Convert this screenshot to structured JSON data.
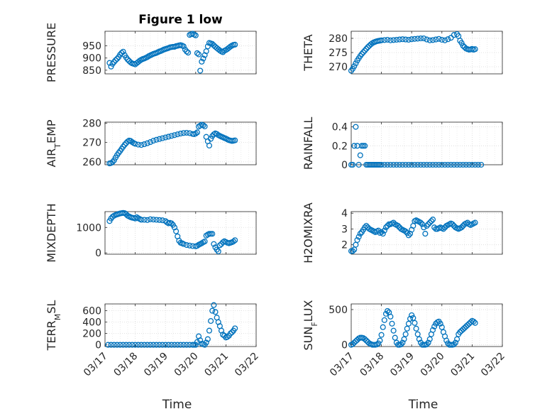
{
  "figure": {
    "title": "Figure 1 low",
    "xlabel": "Time",
    "x_tick_labels": [
      "03/17",
      "03/18",
      "03/19",
      "03/20",
      "03/21",
      "03/22"
    ],
    "marker_color": "#0072bd"
  },
  "chart_data": [
    {
      "type": "scatter",
      "title": "Figure 1 low",
      "ylabel_main": "PRESSURE",
      "ylabel_sub": "",
      "xlim": [
        17.0,
        22.0
      ],
      "ylim": [
        835,
        1010
      ],
      "yticks": [
        850,
        900,
        950
      ],
      "grid": true,
      "x": [
        17.15,
        17.2,
        17.25,
        17.3,
        17.35,
        17.4,
        17.45,
        17.5,
        17.55,
        17.6,
        17.65,
        17.7,
        17.75,
        17.8,
        17.85,
        17.9,
        17.95,
        18.0,
        18.05,
        18.1,
        18.15,
        18.2,
        18.25,
        18.3,
        18.35,
        18.4,
        18.45,
        18.5,
        18.55,
        18.6,
        18.65,
        18.7,
        18.75,
        18.8,
        18.85,
        18.9,
        18.95,
        19.0,
        19.05,
        19.1,
        19.15,
        19.2,
        19.25,
        19.3,
        19.35,
        19.4,
        19.45,
        19.5,
        19.55,
        19.6,
        19.65,
        19.7,
        19.75,
        19.8,
        19.85,
        19.9,
        19.95,
        20.0,
        20.05,
        20.1,
        20.15,
        20.2,
        20.25,
        20.3,
        20.35,
        20.4,
        20.45,
        20.5,
        20.55,
        20.6,
        20.65,
        20.7,
        20.75,
        20.8,
        20.85,
        20.9,
        20.95,
        21.0,
        21.05,
        21.1,
        21.15,
        21.2,
        21.25,
        21.3
      ],
      "y": [
        880,
        865,
        876,
        884,
        891,
        897,
        904,
        914,
        921,
        926,
        912,
        902,
        894,
        888,
        882,
        878,
        876,
        874,
        879,
        884,
        889,
        893,
        896,
        898,
        901,
        904,
        908,
        911,
        914,
        917,
        919,
        921,
        924,
        927,
        929,
        932,
        935,
        937,
        939,
        941,
        944,
        945,
        946,
        946,
        949,
        950,
        952,
        953,
        951,
        948,
        935,
        927,
        922,
        995,
        998,
        1000,
        996,
        993,
        920,
        915,
        848,
        885,
        898,
        912,
        928,
        948,
        962,
        960,
        958,
        952,
        946,
        941,
        936,
        931,
        927,
        924,
        930,
        933,
        937,
        942,
        947,
        951,
        954,
        955
      ],
      "y_values_note_removed": true
    },
    {
      "type": "scatter",
      "title": "",
      "ylabel_main": "THETA",
      "ylabel_sub": "",
      "xlim": [
        17.0,
        22.0
      ],
      "ylim": [
        267.5,
        282.5
      ],
      "yticks": [
        270,
        275,
        280
      ],
      "grid": true,
      "x": [
        17.0,
        17.05,
        17.1,
        17.15,
        17.2,
        17.25,
        17.3,
        17.35,
        17.4,
        17.45,
        17.5,
        17.55,
        17.6,
        17.65,
        17.7,
        17.75,
        17.8,
        17.85,
        17.9,
        17.95,
        18.0,
        18.1,
        18.2,
        18.3,
        18.4,
        18.5,
        18.6,
        18.7,
        18.8,
        18.9,
        19.0,
        19.1,
        19.2,
        19.3,
        19.4,
        19.5,
        19.6,
        19.7,
        19.8,
        19.9,
        20.0,
        20.1,
        20.2,
        20.3,
        20.4,
        20.5,
        20.55,
        20.6,
        20.65,
        20.7,
        20.75,
        20.8,
        20.85,
        20.9,
        20.95,
        21.0,
        21.05,
        21.1
      ],
      "y": [
        268.6,
        269.3,
        270.2,
        271.2,
        272.2,
        273.0,
        273.8,
        274.5,
        275.1,
        275.7,
        276.3,
        276.9,
        277.4,
        277.9,
        278.3,
        278.6,
        278.8,
        279.0,
        279.1,
        279.2,
        279.3,
        279.4,
        279.5,
        279.3,
        279.4,
        279.5,
        279.6,
        279.7,
        279.6,
        279.5,
        279.7,
        279.8,
        279.9,
        280.0,
        280.0,
        279.6,
        279.3,
        279.4,
        279.6,
        279.8,
        279.5,
        279.3,
        279.7,
        280.2,
        281.2,
        281.5,
        280.8,
        279.2,
        278.4,
        277.4,
        276.9,
        276.4,
        276.2,
        276.0,
        276.1,
        276.3,
        276.0,
        276.2
      ]
    },
    {
      "type": "scatter",
      "title": "",
      "ylabel_main": "AIR",
      "ylabel_sub": "T",
      "ylabel_rest": "EMP",
      "xlim": [
        17.0,
        22.0
      ],
      "ylim": [
        258.5,
        280.5
      ],
      "yticks": [
        260,
        270,
        280
      ],
      "grid": true,
      "x": [
        17.15,
        17.2,
        17.25,
        17.3,
        17.35,
        17.4,
        17.45,
        17.5,
        17.55,
        17.6,
        17.65,
        17.7,
        17.75,
        17.8,
        17.85,
        17.9,
        17.95,
        18.0,
        18.1,
        18.2,
        18.3,
        18.4,
        18.5,
        18.6,
        18.7,
        18.8,
        18.9,
        19.0,
        19.1,
        19.2,
        19.3,
        19.4,
        19.5,
        19.6,
        19.7,
        19.8,
        19.9,
        19.95,
        20.0,
        20.05,
        20.1,
        20.15,
        20.2,
        20.25,
        20.3,
        20.35,
        20.4,
        20.45,
        20.5,
        20.55,
        20.6,
        20.65,
        20.7,
        20.75,
        20.8,
        20.85,
        20.9,
        20.95,
        21.0,
        21.05,
        21.1,
        21.15,
        21.2,
        21.25,
        21.3
      ],
      "y": [
        259.2,
        259.4,
        259.9,
        260.8,
        262.2,
        263.5,
        264.6,
        265.6,
        266.7,
        267.8,
        268.8,
        269.7,
        270.5,
        271.0,
        270.8,
        270.2,
        269.7,
        269.3,
        268.9,
        268.7,
        269.1,
        269.6,
        270.2,
        270.9,
        271.4,
        271.8,
        272.2,
        272.6,
        273.0,
        273.4,
        273.8,
        274.2,
        274.6,
        274.9,
        275.0,
        274.8,
        274.4,
        274.3,
        274.6,
        275.2,
        278.2,
        278.7,
        279.2,
        278.9,
        278.3,
        272.9,
        270.6,
        268.4,
        271.9,
        273.3,
        274.2,
        274.7,
        274.4,
        273.8,
        273.4,
        273.0,
        272.7,
        272.3,
        272.0,
        271.6,
        271.2,
        271.0,
        270.8,
        270.9,
        271.1
      ]
    },
    {
      "type": "scatter",
      "title": "",
      "ylabel_main": "RAINFALL",
      "ylabel_sub": "",
      "xlim": [
        17.0,
        22.0
      ],
      "ylim": [
        0,
        0.45
      ],
      "yticks": [
        0,
        0.2,
        0.4
      ],
      "ytick_labels": [
        "0",
        "0.2",
        "0.4"
      ],
      "grid": true,
      "x": [
        17.0,
        17.05,
        17.1,
        17.15,
        17.2,
        17.25,
        17.3,
        17.35,
        17.4,
        17.45,
        17.5,
        17.55,
        17.6,
        17.65,
        17.7,
        17.75,
        17.8,
        17.85,
        17.9,
        17.95,
        18.0,
        18.1,
        18.2,
        18.3,
        18.4,
        18.5,
        18.6,
        18.7,
        18.8,
        18.9,
        19.0,
        19.1,
        19.2,
        19.3,
        19.4,
        19.5,
        19.6,
        19.7,
        19.8,
        19.9,
        20.0,
        20.1,
        20.2,
        20.3,
        20.4,
        20.5,
        20.6,
        20.7,
        20.8,
        20.9,
        21.0,
        21.1,
        21.2,
        21.3
      ],
      "y": [
        0,
        0,
        0.2,
        0.4,
        0.2,
        0,
        0.1,
        0.2,
        0.2,
        0.2,
        0,
        0,
        0,
        0,
        0,
        0,
        0,
        0,
        0,
        0,
        0,
        0,
        0,
        0,
        0,
        0,
        0,
        0,
        0,
        0,
        0,
        0,
        0,
        0,
        0,
        0,
        0,
        0,
        0,
        0,
        0,
        0,
        0,
        0,
        0,
        0,
        0,
        0,
        0,
        0,
        0,
        0,
        0,
        0
      ]
    },
    {
      "type": "scatter",
      "title": "",
      "ylabel_main": "MIXDEPTH",
      "ylabel_sub": "",
      "xlim": [
        17.0,
        22.0
      ],
      "ylim": [
        -50,
        1620
      ],
      "yticks": [
        0,
        1000
      ],
      "grid": true,
      "x": [
        17.15,
        17.2,
        17.25,
        17.3,
        17.35,
        17.4,
        17.45,
        17.5,
        17.55,
        17.6,
        17.65,
        17.7,
        17.75,
        17.8,
        17.85,
        17.9,
        17.95,
        18.0,
        18.05,
        18.1,
        18.15,
        18.2,
        18.3,
        18.4,
        18.5,
        18.6,
        18.7,
        18.8,
        18.9,
        19.0,
        19.05,
        19.1,
        19.15,
        19.2,
        19.25,
        19.3,
        19.35,
        19.4,
        19.45,
        19.5,
        19.55,
        19.6,
        19.7,
        19.8,
        19.9,
        20.0,
        20.05,
        20.1,
        20.15,
        20.2,
        20.25,
        20.3,
        20.35,
        20.4,
        20.45,
        20.5,
        20.55,
        20.6,
        20.65,
        20.7,
        20.75,
        20.8,
        20.85,
        20.9,
        20.95,
        21.0,
        21.05,
        21.1,
        21.15,
        21.2,
        21.25,
        21.3
      ],
      "y": [
        1250,
        1350,
        1420,
        1460,
        1490,
        1510,
        1530,
        1550,
        1560,
        1570,
        1560,
        1520,
        1460,
        1430,
        1400,
        1380,
        1370,
        1350,
        1400,
        1360,
        1330,
        1300,
        1300,
        1290,
        1320,
        1310,
        1300,
        1290,
        1280,
        1250,
        1200,
        1160,
        1180,
        1160,
        1100,
        1000,
        850,
        650,
        480,
        400,
        380,
        350,
        310,
        290,
        270,
        260,
        280,
        320,
        350,
        380,
        420,
        450,
        680,
        720,
        750,
        750,
        750,
        350,
        220,
        130,
        60,
        300,
        350,
        420,
        460,
        430,
        400,
        380,
        400,
        420,
        450,
        500
      ]
    },
    {
      "type": "scatter",
      "title": "",
      "ylabel_main": "H2OMIXRA",
      "ylabel_sub": "",
      "xlim": [
        17.0,
        22.0
      ],
      "ylim": [
        1.4,
        4.1
      ],
      "yticks": [
        2,
        3,
        4
      ],
      "grid": true,
      "x": [
        17.0,
        17.05,
        17.1,
        17.15,
        17.2,
        17.25,
        17.3,
        17.35,
        17.4,
        17.45,
        17.5,
        17.55,
        17.6,
        17.65,
        17.7,
        17.75,
        17.8,
        17.85,
        17.9,
        17.95,
        18.0,
        18.05,
        18.1,
        18.15,
        18.2,
        18.25,
        18.3,
        18.35,
        18.4,
        18.45,
        18.5,
        18.55,
        18.6,
        18.65,
        18.7,
        18.75,
        18.8,
        18.85,
        18.9,
        18.95,
        19.0,
        19.05,
        19.1,
        19.15,
        19.2,
        19.25,
        19.3,
        19.35,
        19.4,
        19.45,
        19.5,
        19.55,
        19.6,
        19.65,
        19.7,
        19.75,
        19.8,
        19.85,
        19.9,
        19.95,
        20.0,
        20.05,
        20.1,
        20.15,
        20.2,
        20.25,
        20.3,
        20.35,
        20.4,
        20.45,
        20.5,
        20.55,
        20.6,
        20.65,
        20.7,
        20.75,
        20.8,
        20.85,
        20.9,
        20.95,
        21.0,
        21.05,
        21.1
      ],
      "y": [
        1.6,
        1.6,
        1.7,
        2.0,
        2.3,
        2.5,
        2.7,
        2.8,
        2.95,
        3.1,
        3.2,
        3.1,
        3.0,
        2.95,
        2.9,
        2.85,
        2.8,
        2.85,
        2.9,
        2.75,
        2.8,
        2.7,
        2.9,
        3.1,
        3.2,
        3.3,
        3.3,
        3.35,
        3.4,
        3.3,
        3.25,
        3.2,
        3.1,
        3.0,
        2.95,
        2.9,
        2.85,
        2.75,
        2.6,
        2.7,
        2.95,
        3.2,
        3.5,
        3.55,
        3.5,
        3.45,
        3.4,
        3.3,
        3.1,
        2.7,
        3.2,
        3.3,
        3.4,
        3.5,
        3.6,
        3.1,
        3.0,
        3.0,
        3.05,
        3.1,
        3.05,
        3.0,
        3.1,
        3.2,
        3.25,
        3.3,
        3.35,
        3.3,
        3.2,
        3.1,
        3.05,
        3.0,
        3.05,
        3.1,
        3.2,
        3.3,
        3.35,
        3.4,
        3.3,
        3.25,
        3.3,
        3.35,
        3.4
      ]
    },
    {
      "type": "scatter",
      "title": "",
      "ylabel_main": "TERR",
      "ylabel_sub": "M",
      "ylabel_rest": "SL",
      "xlim": [
        17.0,
        22.0
      ],
      "ylim": [
        -30,
        720
      ],
      "yticks": [
        0,
        200,
        400,
        600
      ],
      "grid": true,
      "x": [
        17.1,
        17.2,
        17.3,
        17.4,
        17.5,
        17.6,
        17.7,
        17.8,
        17.9,
        18.0,
        18.1,
        18.2,
        18.3,
        18.4,
        18.5,
        18.6,
        18.7,
        18.8,
        18.9,
        19.0,
        19.1,
        19.2,
        19.3,
        19.4,
        19.5,
        19.6,
        19.7,
        19.8,
        19.9,
        19.95,
        20.0,
        20.05,
        20.1,
        20.15,
        20.2,
        20.25,
        20.3,
        20.35,
        20.4,
        20.45,
        20.5,
        20.55,
        20.6,
        20.65,
        20.7,
        20.75,
        20.8,
        20.85,
        20.9,
        20.95,
        21.0,
        21.05,
        21.1,
        21.15,
        21.2,
        21.25,
        21.3
      ],
      "y": [
        0,
        0,
        0,
        0,
        0,
        0,
        0,
        0,
        0,
        0,
        0,
        0,
        0,
        0,
        0,
        0,
        0,
        0,
        0,
        0,
        0,
        0,
        0,
        0,
        0,
        0,
        0,
        0,
        0,
        0,
        0,
        50,
        150,
        80,
        20,
        10,
        0,
        40,
        100,
        250,
        420,
        600,
        700,
        580,
        480,
        400,
        330,
        250,
        180,
        160,
        130,
        140,
        160,
        200,
        220,
        250,
        290
      ]
    },
    {
      "type": "scatter",
      "title": "",
      "ylabel_main": "SUN",
      "ylabel_sub": "F",
      "ylabel_rest": "LUX",
      "xlim": [
        17.0,
        22.0
      ],
      "ylim": [
        -25,
        580
      ],
      "yticks": [
        0,
        500
      ],
      "grid": true,
      "x": [
        17.0,
        17.05,
        17.1,
        17.15,
        17.2,
        17.25,
        17.3,
        17.35,
        17.4,
        17.45,
        17.5,
        17.55,
        17.6,
        17.65,
        17.7,
        17.75,
        17.8,
        17.85,
        17.9,
        17.95,
        18.0,
        18.05,
        18.1,
        18.15,
        18.2,
        18.25,
        18.3,
        18.35,
        18.4,
        18.45,
        18.5,
        18.55,
        18.6,
        18.65,
        18.7,
        18.75,
        18.8,
        18.85,
        18.9,
        18.95,
        19.0,
        19.05,
        19.1,
        19.15,
        19.2,
        19.25,
        19.3,
        19.35,
        19.4,
        19.45,
        19.5,
        19.55,
        19.6,
        19.65,
        19.7,
        19.75,
        19.8,
        19.85,
        19.9,
        19.95,
        20.0,
        20.05,
        20.1,
        20.15,
        20.2,
        20.25,
        20.3,
        20.35,
        20.4,
        20.45,
        20.5,
        20.55,
        20.6,
        20.65,
        20.7,
        20.75,
        20.8,
        20.85,
        20.9,
        20.95,
        21.0,
        21.05,
        21.1
      ],
      "y": [
        0,
        10,
        30,
        50,
        70,
        90,
        100,
        100,
        95,
        80,
        60,
        40,
        20,
        10,
        0,
        0,
        0,
        5,
        20,
        60,
        140,
        250,
        350,
        440,
        480,
        460,
        400,
        300,
        200,
        100,
        30,
        0,
        0,
        5,
        30,
        80,
        150,
        230,
        300,
        370,
        420,
        380,
        310,
        230,
        150,
        80,
        30,
        0,
        0,
        0,
        5,
        30,
        80,
        150,
        210,
        260,
        300,
        320,
        330,
        300,
        250,
        180,
        120,
        60,
        20,
        0,
        0,
        0,
        5,
        30,
        80,
        150,
        180,
        200,
        220,
        240,
        260,
        280,
        300,
        320,
        340,
        330,
        310
      ]
    }
  ]
}
